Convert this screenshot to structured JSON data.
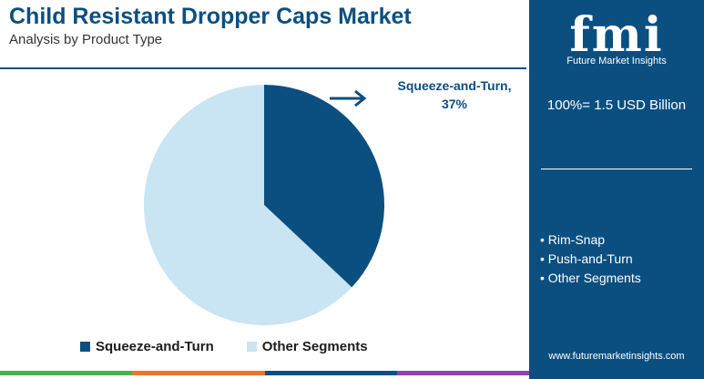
{
  "header": {
    "title": "Child Resistant Dropper Caps Market",
    "subtitle": "Analysis by Product Type"
  },
  "callout": {
    "label": "Squeeze-and-Turn, 37%"
  },
  "chart_data": {
    "type": "pie",
    "slices": [
      {
        "label": "Squeeze-and-Turn",
        "value": 37,
        "color": "#0b4f80"
      },
      {
        "label": "Other Segments",
        "value": 63,
        "color": "#c9e4f3"
      }
    ],
    "legend": [
      "Squeeze-and-Turn",
      "Other Segments"
    ],
    "legend_position": "bottom"
  },
  "side_panel": {
    "logo_text": "fmi",
    "logo_subtitle": "Future Market Insights",
    "total_label": "100%= 1.5 USD Billion",
    "segments": [
      "Rim-Snap",
      "Push-and-Turn",
      "Other Segments"
    ],
    "website": "www.futuremarketinsights.com",
    "background_color": "#0b4f80"
  },
  "footer_colors": [
    "#4caf50",
    "#e8772e",
    "#0b4f80",
    "#8e44ad"
  ]
}
